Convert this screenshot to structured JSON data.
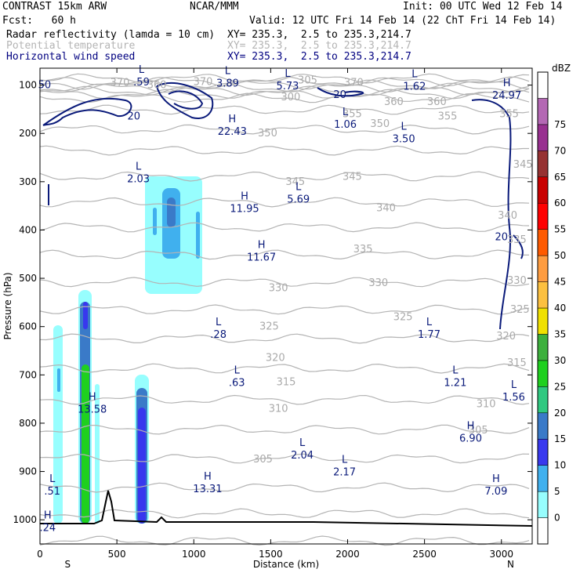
{
  "header": {
    "model": "CONTRAST 15km ARW",
    "center": "NCAR/MMM",
    "init": "Init: 00 UTC Wed 12 Feb 14",
    "fcst": "Fcst:   60 h",
    "valid": "Valid: 12 UTC Fri 14 Feb 14 (22 ChT Fri 14 Feb 14)",
    "fields": [
      {
        "name": "Radar reflectivity (lamda = 10 cm)",
        "xy": "XY= 235.3,  2.5 to 235.3,214.7",
        "color": "#000000"
      },
      {
        "name": "Potential temperature",
        "xy": "XY= 235.3,  2.5 to 235.3,214.7",
        "color": "#b4b4b4"
      },
      {
        "name": "Horizontal wind speed",
        "xy": "XY= 235.3,  2.5 to 235.3,214.7",
        "color": "#000080"
      }
    ]
  },
  "chart_data": {
    "type": "cross-section",
    "xlabel": "Distance (km)",
    "ylabel": "Pressure (hPa)",
    "xlim": [
      0,
      3200
    ],
    "ylim": [
      1050,
      65
    ],
    "x_ticks": [
      0,
      500,
      1000,
      1500,
      2000,
      2500,
      3000
    ],
    "y_ticks": [
      100,
      200,
      300,
      400,
      500,
      600,
      700,
      800,
      900,
      1000
    ],
    "x_end_labels": {
      "left": "S",
      "right": "N"
    },
    "colorbar": {
      "unit": "dBZ",
      "levels": [
        "0",
        "5",
        "10",
        "15",
        "20",
        "25",
        "30",
        "35",
        "40",
        "45",
        "50",
        "55",
        "60",
        "65",
        "70",
        "75"
      ],
      "colors": [
        "#ffffff",
        "#97fefe",
        "#40b0ee",
        "#3838ee",
        "#3a7ac8",
        "#30c880",
        "#1fd01f",
        "#3db03d",
        "#f0e000",
        "#fcc040",
        "#fe9c40",
        "#fe5a00",
        "#fe0000",
        "#c80000",
        "#963232",
        "#983090",
        "#b468b4",
        "#ffffff"
      ]
    },
    "theta_labels": [
      {
        "v": "370",
        "x": 520,
        "p": 95
      },
      {
        "v": "370",
        "x": 1060,
        "p": 93
      },
      {
        "v": "370",
        "x": 2040,
        "p": 95
      },
      {
        "v": "360",
        "x": 760,
        "p": 100
      },
      {
        "v": "360",
        "x": 2300,
        "p": 135
      },
      {
        "v": "360",
        "x": 2580,
        "p": 135
      },
      {
        "v": "355",
        "x": 2030,
        "p": 160
      },
      {
        "v": "355",
        "x": 2650,
        "p": 165
      },
      {
        "v": "355",
        "x": 3050,
        "p": 160
      },
      {
        "v": "350",
        "x": 1480,
        "p": 200
      },
      {
        "v": "350",
        "x": 2210,
        "p": 180
      },
      {
        "v": "345",
        "x": 1660,
        "p": 300
      },
      {
        "v": "345",
        "x": 2030,
        "p": 290
      },
      {
        "v": "345",
        "x": 3140,
        "p": 265
      },
      {
        "v": "340",
        "x": 2250,
        "p": 355
      },
      {
        "v": "340",
        "x": 3040,
        "p": 370
      },
      {
        "v": "335",
        "x": 2100,
        "p": 440
      },
      {
        "v": "335",
        "x": 3100,
        "p": 420
      },
      {
        "v": "330",
        "x": 1550,
        "p": 520
      },
      {
        "v": "330",
        "x": 2200,
        "p": 510
      },
      {
        "v": "330",
        "x": 3100,
        "p": 505
      },
      {
        "v": "325",
        "x": 1490,
        "p": 600
      },
      {
        "v": "325",
        "x": 2360,
        "p": 580
      },
      {
        "v": "325",
        "x": 3120,
        "p": 565
      },
      {
        "v": "320",
        "x": 1530,
        "p": 665
      },
      {
        "v": "320",
        "x": 3030,
        "p": 620
      },
      {
        "v": "315",
        "x": 1600,
        "p": 715
      },
      {
        "v": "315",
        "x": 3100,
        "p": 675
      },
      {
        "v": "310",
        "x": 1550,
        "p": 770
      },
      {
        "v": "310",
        "x": 2900,
        "p": 760
      },
      {
        "v": "305",
        "x": 1450,
        "p": 875
      },
      {
        "v": "305",
        "x": 2850,
        "p": 815
      },
      {
        "v": "300",
        "x": 1630,
        "p": 125
      },
      {
        "v": "305",
        "x": 1740,
        "p": 90
      }
    ],
    "wind_labels": [
      {
        "v": "50",
        "x": 30,
        "p": 100
      },
      {
        "v": "20",
        "x": 610,
        "p": 165
      },
      {
        "v": "20",
        "x": 1950,
        "p": 120
      },
      {
        "v": "20",
        "x": 3000,
        "p": 415
      }
    ],
    "extrema": [
      {
        "t": "L",
        "v": ".59",
        "x": 660,
        "p": 88
      },
      {
        "t": "L",
        "v": "3.89",
        "x": 1220,
        "p": 90
      },
      {
        "t": "L",
        "v": "5.73",
        "x": 1610,
        "p": 96
      },
      {
        "t": "L",
        "v": "1.62",
        "x": 2435,
        "p": 97
      },
      {
        "t": "H",
        "v": "24.97",
        "x": 3035,
        "p": 115
      },
      {
        "t": "H",
        "v": "22.43",
        "x": 1250,
        "p": 190
      },
      {
        "t": "L",
        "v": "1.06",
        "x": 1985,
        "p": 175
      },
      {
        "t": "L",
        "v": "3.50",
        "x": 2365,
        "p": 205
      },
      {
        "t": "L",
        "v": "2.03",
        "x": 640,
        "p": 288
      },
      {
        "t": "L",
        "v": "5.69",
        "x": 1680,
        "p": 330
      },
      {
        "t": "H",
        "v": "11.95",
        "x": 1330,
        "p": 350
      },
      {
        "t": "H",
        "v": "11.67",
        "x": 1440,
        "p": 450
      },
      {
        "t": "L",
        "v": ".28",
        "x": 1160,
        "p": 610
      },
      {
        "t": "L",
        "v": "1.77",
        "x": 2530,
        "p": 610
      },
      {
        "t": "L",
        "v": ".63",
        "x": 1280,
        "p": 710
      },
      {
        "t": "L",
        "v": "1.21",
        "x": 2700,
        "p": 710
      },
      {
        "t": "L",
        "v": "1.56",
        "x": 3080,
        "p": 740
      },
      {
        "t": "H",
        "v": "13.58",
        "x": 340,
        "p": 765
      },
      {
        "t": "H",
        "v": "6.90",
        "x": 2800,
        "p": 825
      },
      {
        "t": "L",
        "v": "2.04",
        "x": 1705,
        "p": 860
      },
      {
        "t": "L",
        "v": "2.17",
        "x": 1980,
        "p": 895
      },
      {
        "t": "L",
        "v": ".51",
        "x": 80,
        "p": 935
      },
      {
        "t": "H",
        "v": "13.31",
        "x": 1090,
        "p": 930
      },
      {
        "t": "H",
        "v": "7.09",
        "x": 2965,
        "p": 935
      },
      {
        "t": "H",
        "v": ".24",
        "x": 50,
        "p": 1010
      }
    ]
  }
}
